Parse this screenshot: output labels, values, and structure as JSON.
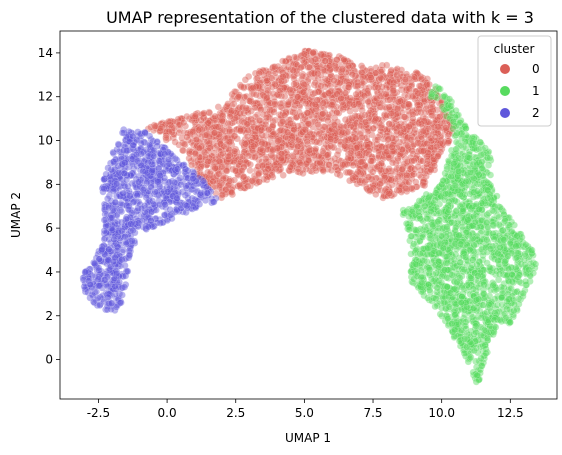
{
  "chart_data": {
    "type": "scatter",
    "title": "UMAP representation of the clustered data with k = 3",
    "xlabel": "UMAP 1",
    "ylabel": "UMAP 2",
    "xlim": [
      -3.9,
      14.2
    ],
    "ylim": [
      -1.8,
      15.0
    ],
    "xticks": [
      -2.5,
      0.0,
      2.5,
      5.0,
      7.5,
      10.0,
      12.5
    ],
    "xtick_labels": [
      "-2.5",
      "0.0",
      "2.5",
      "5.0",
      "7.5",
      "10.0",
      "12.5"
    ],
    "yticks": [
      0,
      2,
      4,
      6,
      8,
      10,
      12,
      14
    ],
    "ytick_labels": [
      "0",
      "2",
      "4",
      "6",
      "8",
      "10",
      "12",
      "14"
    ],
    "grid": false,
    "legend": {
      "title": "cluster",
      "placement": "top-right",
      "entries": [
        "0",
        "1",
        "2"
      ]
    },
    "series": [
      {
        "name": "0",
        "color": "#db5f57",
        "regions": [
          {
            "x": [
              -0.8,
              1.0,
              2.0,
              2.5,
              3.0,
              4.0,
              5.0,
              6.0,
              7.0,
              8.0,
              8.5,
              9.0,
              9.5,
              10.0,
              10.5,
              9.5,
              8.5,
              8.0,
              7.5,
              6.0,
              5.0,
              4.0,
              3.0,
              2.0,
              1.0,
              0.5
            ],
            "y": [
              10.6,
              11.2,
              11.6,
              12.3,
              13.0,
              13.5,
              14.1,
              14.0,
              13.4,
              13.5,
              13.3,
              13.2,
              12.8,
              12.0,
              10.5,
              8.0,
              7.5,
              7.3,
              7.6,
              8.6,
              8.5,
              8.3,
              7.9,
              7.3,
              8.5,
              9.6
            ]
          }
        ]
      },
      {
        "name": "1",
        "color": "#57db5f",
        "regions": [
          {
            "x": [
              10.2,
              11.0,
              11.8,
              11.8,
              12.5,
              13.3,
              13.5,
              13.0,
              12.5,
              12.1,
              11.8,
              11.3,
              11.0,
              10.5,
              10.0,
              9.3,
              8.8,
              8.9,
              8.8,
              8.5,
              9.5,
              10.0,
              10.5,
              10.0,
              9.5,
              9.8
            ],
            "y": [
              12.1,
              10.4,
              9.5,
              8.0,
              6.5,
              5.0,
              4.3,
              3.0,
              1.5,
              1.8,
              0.7,
              -1.3,
              -0.2,
              0.9,
              2.0,
              3.0,
              3.6,
              4.3,
              5.8,
              6.8,
              7.6,
              8.0,
              10.3,
              11.5,
              12.0,
              12.6
            ]
          }
        ]
      },
      {
        "name": "2",
        "color": "#5f57db",
        "regions": [
          {
            "x": [
              -1.6,
              -0.9,
              0.0,
              1.0,
              2.0,
              1.0,
              0.0,
              -0.8,
              -1.3,
              -1.5,
              -1.6,
              -1.8,
              -2.2,
              -2.6,
              -3.0,
              -3.1,
              -2.6,
              -2.3,
              -2.3,
              -2.4,
              -2.0
            ],
            "y": [
              10.5,
              10.5,
              9.6,
              8.6,
              7.3,
              6.9,
              6.3,
              5.9,
              5.0,
              3.5,
              2.6,
              2.2,
              2.2,
              2.5,
              3.1,
              3.9,
              4.7,
              5.6,
              7.0,
              7.9,
              9.4
            ]
          }
        ]
      }
    ]
  }
}
